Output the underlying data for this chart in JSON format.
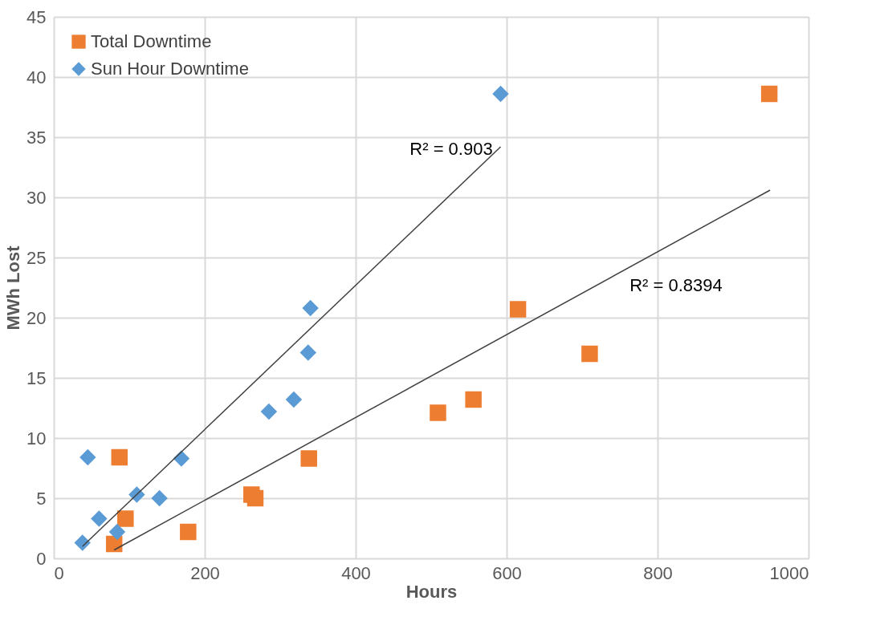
{
  "chart_data": {
    "type": "scatter",
    "xlabel": "Hours",
    "ylabel": "MWh Lost",
    "xlim": [
      0,
      1000
    ],
    "xticks": [
      0,
      200,
      400,
      600,
      800,
      1000
    ],
    "ylim": [
      0,
      45
    ],
    "yticks": [
      0,
      5,
      10,
      15,
      20,
      25,
      30,
      35,
      40,
      45
    ],
    "grid": true,
    "legend": "top left",
    "series": [
      {
        "name": "Total Downtime",
        "color": "#ed7d31",
        "marker": "square",
        "x": [
          87,
          95,
          80,
          178,
          262,
          267,
          338,
          509,
          556,
          615,
          710,
          948
        ],
        "values": [
          8.4,
          3.3,
          1.2,
          2.2,
          5.3,
          5.0,
          8.3,
          12.1,
          13.2,
          20.7,
          17.0,
          38.6
        ]
      },
      {
        "name": "Sun Hour Downtime",
        "color": "#5b9bd5",
        "marker": "diamond",
        "x": [
          45,
          38,
          60,
          84,
          110,
          140,
          169,
          285,
          318,
          337,
          340,
          592
        ],
        "values": [
          8.4,
          1.3,
          3.3,
          2.2,
          5.3,
          5.0,
          8.3,
          12.2,
          13.2,
          17.1,
          20.8,
          38.6
        ]
      },
      {
        "type": "line",
        "color": "#404040",
        "x": [
          38,
          592
        ],
        "values": [
          1.0,
          34.2
        ]
      },
      {
        "type": "line",
        "color": "#404040",
        "x": [
          80,
          949
        ],
        "values": [
          0.7,
          30.6
        ]
      }
    ],
    "annotations": [
      "R² = 0.903",
      "R² = 0.8394"
    ]
  }
}
